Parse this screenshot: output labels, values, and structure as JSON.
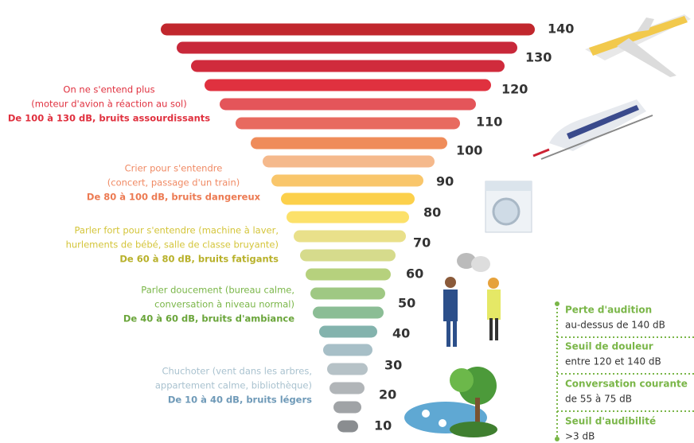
{
  "levels": [
    140,
    130,
    120,
    110,
    100,
    90,
    80,
    70,
    60,
    50,
    40,
    30,
    20,
    10
  ],
  "groups": [
    {
      "lines": [
        "On ne s'entend plus",
        "(moteur d'avion à réaction au sol)"
      ],
      "range": "De 100 à 130 dB, bruits assourdissants"
    },
    {
      "lines": [
        "Crier pour s'entendre",
        "(concert, passage d'un train)"
      ],
      "range": "De 80 à 100 dB, bruits dangereux"
    },
    {
      "lines": [
        "Parler fort pour s'entendre (machine à laver,",
        "hurlements de bébé, salle de classe bruyante)"
      ],
      "range": "De 60 à 80 dB, bruits fatigants"
    },
    {
      "lines": [
        "Parler doucement (bureau calme,",
        "conversation à niveau normal)"
      ],
      "range": "De 40 à 60 dB, bruits d'ambiance"
    },
    {
      "lines": [
        "Chuchoter (vent dans les arbres,",
        "appartement calme, bibliothèque)"
      ],
      "range": "De 10 à 40 dB, bruits légers"
    }
  ],
  "legend": [
    {
      "title": "Perte d'audition",
      "detail": "au-dessus de 140 dB"
    },
    {
      "title": "Seuil de douleur",
      "detail": "entre 120 et 140 dB"
    },
    {
      "title": "Conversation courante",
      "detail": "de 55 à 75 dB"
    },
    {
      "title": "Seuil d'audibilité",
      "detail": ">3 dB"
    }
  ]
}
